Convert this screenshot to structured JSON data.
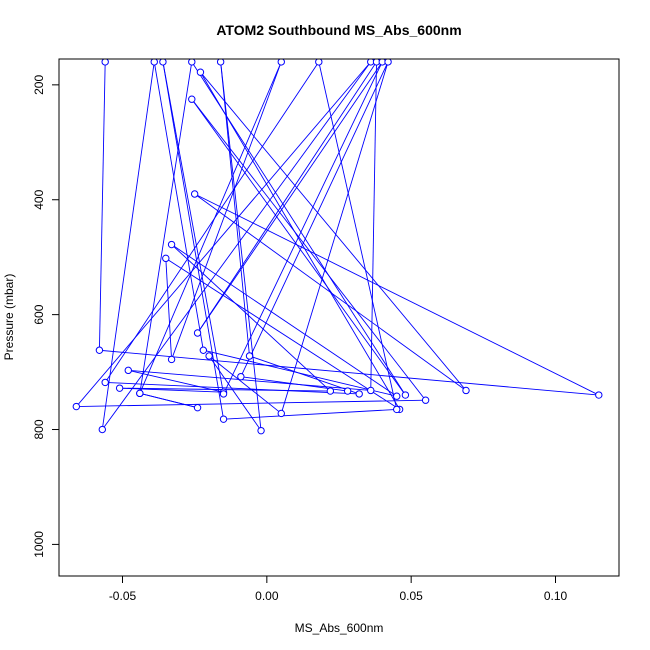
{
  "chart_data": {
    "type": "line",
    "title": "ATOM2 Southbound MS_Abs_600nm",
    "xlabel": "MS_Abs_600nm",
    "ylabel": "Pressure (mbar)",
    "xlim": [
      -0.072,
      0.122
    ],
    "ylim": [
      1055,
      155
    ],
    "y_reversed": true,
    "x_ticks": [
      -0.05,
      0.0,
      0.05,
      0.1
    ],
    "x_tick_labels": [
      "-0.05",
      "0.00",
      "0.05",
      "0.10"
    ],
    "y_ticks": [
      200,
      400,
      600,
      800,
      1000
    ],
    "y_tick_labels": [
      "200",
      "400",
      "600",
      "800",
      "1000"
    ],
    "grid": false,
    "legend": "none",
    "colors": {
      "series": "#0000ff",
      "axis": "#000000"
    },
    "series": [
      {
        "markers": true,
        "points": [
          {
            "x": -0.056,
            "y": 160
          },
          {
            "x": -0.058,
            "y": 662
          },
          {
            "x": 0.115,
            "y": 740
          },
          {
            "x": -0.025,
            "y": 390
          },
          {
            "x": 0.069,
            "y": 732
          },
          {
            "x": -0.023,
            "y": 178
          },
          {
            "x": 0.046,
            "y": 765
          },
          {
            "x": -0.035,
            "y": 502
          },
          {
            "x": -0.033,
            "y": 678
          },
          {
            "x": 0.005,
            "y": 160
          },
          {
            "x": -0.044,
            "y": 737
          },
          {
            "x": -0.024,
            "y": 762
          },
          {
            "x": -0.044,
            "y": 737
          },
          {
            "x": -0.026,
            "y": 160
          },
          {
            "x": 0.048,
            "y": 740
          },
          {
            "x": -0.026,
            "y": 225
          },
          {
            "x": 0.055,
            "y": 749
          },
          {
            "x": -0.066,
            "y": 760
          },
          {
            "x": 0.036,
            "y": 160
          },
          {
            "x": -0.057,
            "y": 800
          },
          {
            "x": -0.039,
            "y": 160
          },
          {
            "x": -0.022,
            "y": 662
          },
          {
            "x": 0.045,
            "y": 742
          },
          {
            "x": -0.033,
            "y": 478
          },
          {
            "x": 0.022,
            "y": 733
          },
          {
            "x": -0.051,
            "y": 728
          },
          {
            "x": -0.015,
            "y": 735
          },
          {
            "x": -0.048,
            "y": 697
          },
          {
            "x": 0.036,
            "y": 732
          },
          {
            "x": 0.038,
            "y": 160
          },
          {
            "x": -0.024,
            "y": 632
          },
          {
            "x": 0.04,
            "y": 160
          },
          {
            "x": -0.015,
            "y": 738
          },
          {
            "x": -0.036,
            "y": 160
          },
          {
            "x": -0.015,
            "y": 782
          },
          {
            "x": 0.045,
            "y": 765
          },
          {
            "x": 0.018,
            "y": 160
          },
          {
            "x": -0.056,
            "y": 718
          },
          {
            "x": 0.032,
            "y": 738
          },
          {
            "x": -0.006,
            "y": 672
          },
          {
            "x": -0.016,
            "y": 160
          },
          {
            "x": -0.002,
            "y": 802
          },
          {
            "x": -0.02,
            "y": 672
          },
          {
            "x": 0.005,
            "y": 772
          },
          {
            "x": 0.042,
            "y": 160
          },
          {
            "x": -0.009,
            "y": 708
          },
          {
            "x": 0.028,
            "y": 733
          }
        ]
      }
    ]
  }
}
